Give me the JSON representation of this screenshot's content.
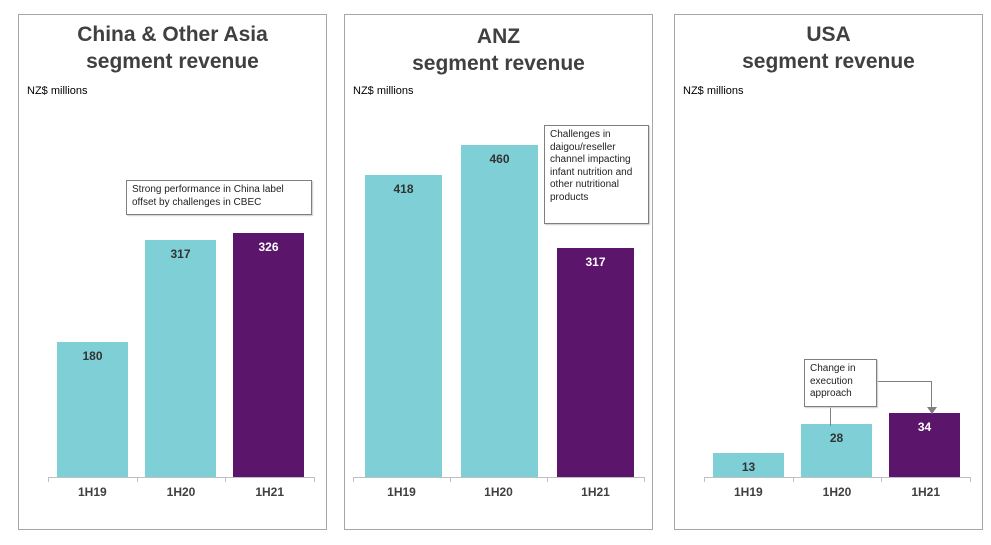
{
  "colors": {
    "prior": "#7ecfd6",
    "current": "#5b166b",
    "border": "#a6a6a6"
  },
  "chart_data": [
    {
      "type": "bar",
      "title_line1": "China & Other Asia",
      "title_line2": "segment revenue",
      "ylabel": "NZ$ millions",
      "categories": [
        "1H19",
        "1H20",
        "1H21"
      ],
      "values": [
        180,
        317,
        326
      ],
      "value_labels": [
        "180",
        "317",
        "326"
      ],
      "highlight": [
        false,
        false,
        true
      ],
      "annotation": "Strong performance in China label offset by challenges in CBEC"
    },
    {
      "type": "bar",
      "title_line1": "ANZ",
      "title_line2": "segment revenue",
      "ylabel": "NZ$ millions",
      "categories": [
        "1H19",
        "1H20",
        "1H21"
      ],
      "values": [
        418,
        460,
        317
      ],
      "value_labels": [
        "418",
        "460",
        "317"
      ],
      "highlight": [
        false,
        false,
        true
      ],
      "annotation": "Challenges in daigou/reseller channel impacting infant nutrition and other nutritional products"
    },
    {
      "type": "bar",
      "title_line1": "USA",
      "title_line2": "segment revenue",
      "ylabel": "NZ$ millions",
      "categories": [
        "1H19",
        "1H20",
        "1H21"
      ],
      "values": [
        13,
        28,
        34
      ],
      "value_labels": [
        "13",
        "28",
        "34"
      ],
      "highlight": [
        false,
        false,
        true
      ],
      "annotation": "Change in execution approach"
    }
  ]
}
